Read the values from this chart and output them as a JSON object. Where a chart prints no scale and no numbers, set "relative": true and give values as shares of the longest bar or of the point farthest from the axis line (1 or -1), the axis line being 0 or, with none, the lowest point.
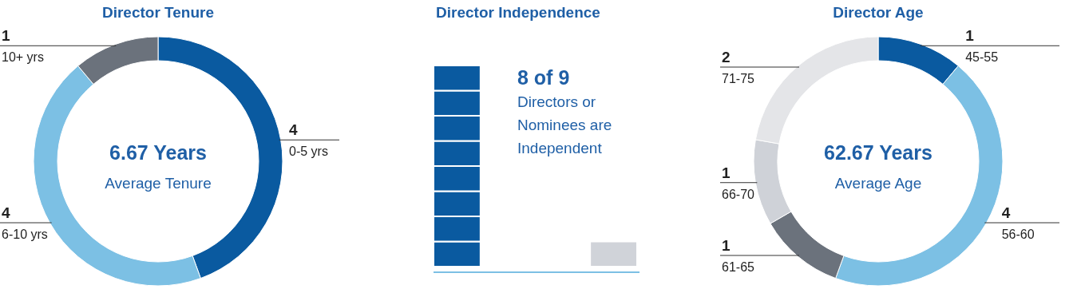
{
  "chart_data": [
    {
      "type": "donut",
      "title": "Director Tenure",
      "categories": [
        "0-5 yrs",
        "6-10 yrs",
        "10+ yrs"
      ],
      "values": [
        4,
        4,
        1
      ],
      "colors": [
        "#0a5aa0",
        "#7cc0e4",
        "#6b727c"
      ],
      "data_labels": true,
      "annotations": [
        "6.67 Years",
        "Average Tenure"
      ]
    },
    {
      "type": "bar",
      "title": "Director Independence",
      "categories": [
        null,
        null
      ],
      "stacked": true,
      "relative": true,
      "series": [
        {
          "color": "#0a5aa0",
          "values": [
            0.125,
            null
          ]
        },
        {
          "color": "#0a5aa0",
          "values": [
            0.125,
            null
          ]
        },
        {
          "color": "#0a5aa0",
          "values": [
            0.125,
            null
          ]
        },
        {
          "color": "#0a5aa0",
          "values": [
            0.125,
            null
          ]
        },
        {
          "color": "#0a5aa0",
          "values": [
            0.125,
            null
          ]
        },
        {
          "color": "#0a5aa0",
          "values": [
            0.125,
            null
          ]
        },
        {
          "color": "#0a5aa0",
          "values": [
            0.125,
            null
          ]
        },
        {
          "color": "#0a5aa0",
          "values": [
            0.125,
            null
          ]
        },
        {
          "color": "#d0d3d9",
          "values": [
            null,
            0.125
          ]
        }
      ],
      "annotations": [
        "8 of 9",
        "Directors or Nominees are Independent"
      ]
    },
    {
      "type": "donut",
      "title": "Director Age",
      "categories": [
        "45-55",
        "56-60",
        "61-65",
        "66-70",
        "71-75"
      ],
      "values": [
        1,
        4,
        1,
        1,
        2
      ],
      "colors": [
        "#0a5aa0",
        "#7cc0e4",
        "#6b727c",
        "#cfd2d8",
        "#e4e5e8"
      ],
      "data_labels": true,
      "annotations": [
        "62.67 Years",
        "Average Age"
      ]
    }
  ]
}
